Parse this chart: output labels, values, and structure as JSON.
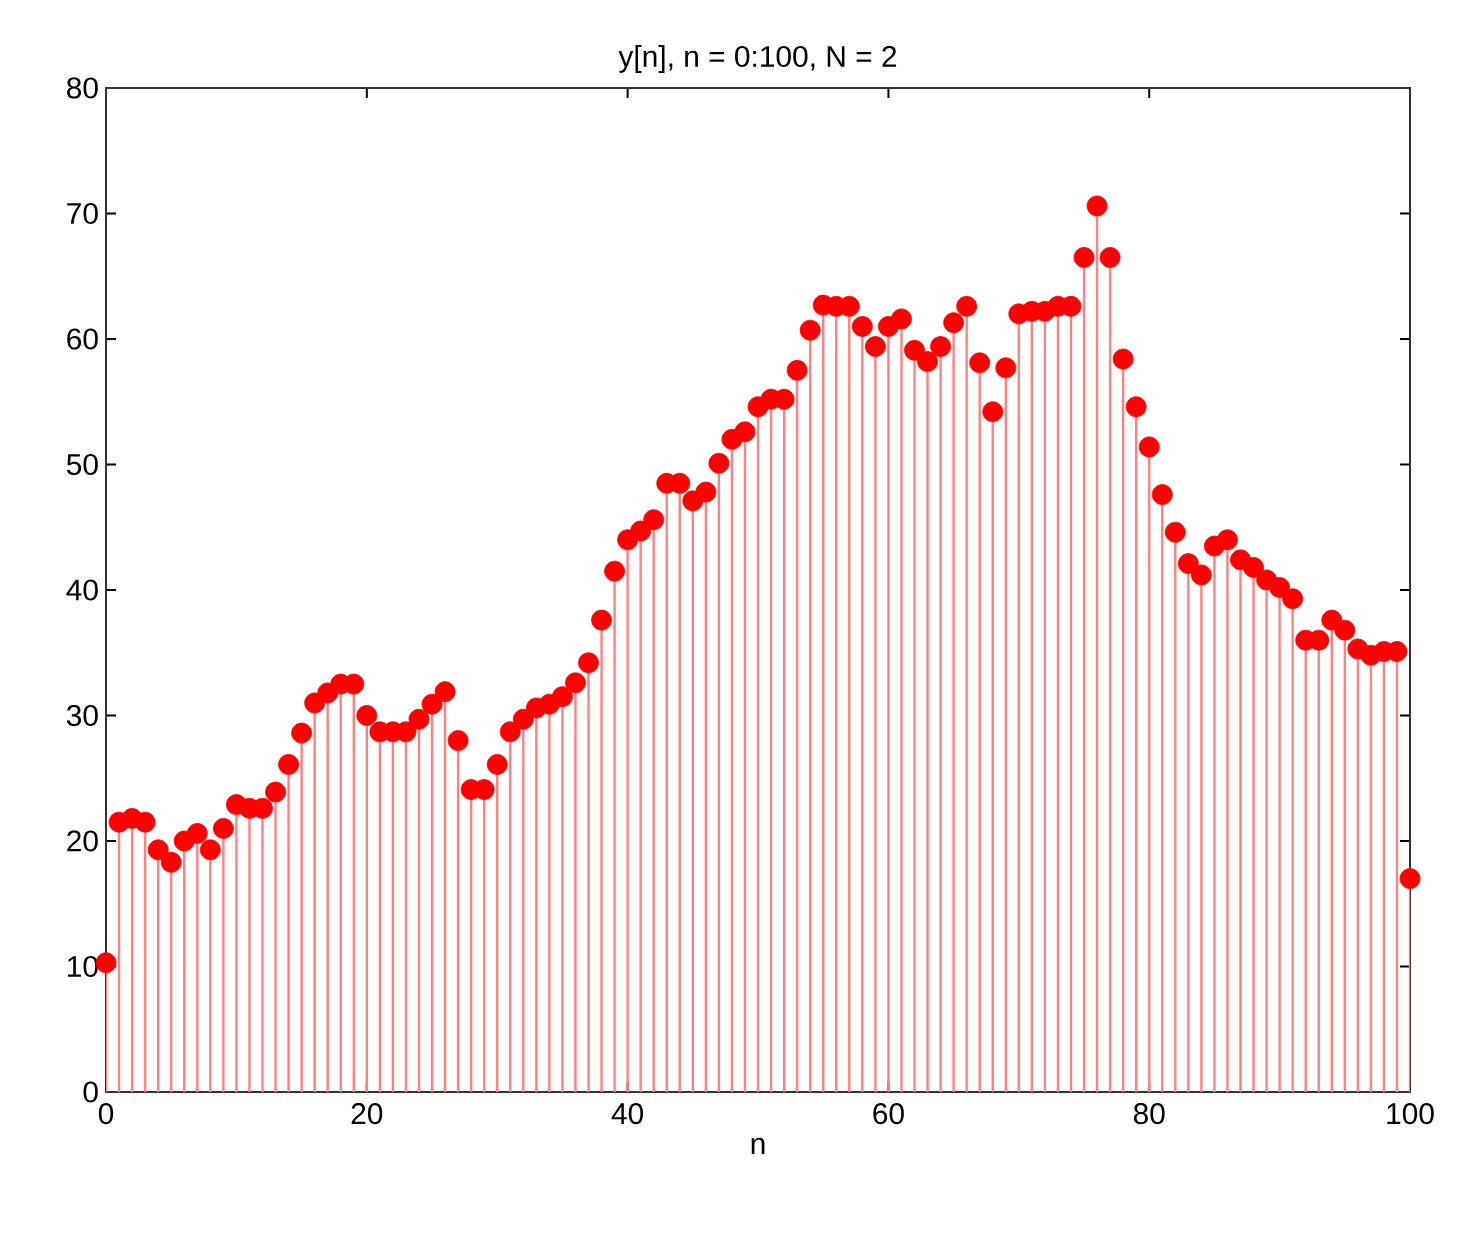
{
  "chart_data": {
    "type": "lollipop",
    "title": "y[n], n = 0:100, N = 2",
    "xlabel": "n",
    "x": [
      0,
      1,
      2,
      3,
      4,
      5,
      6,
      7,
      8,
      9,
      10,
      11,
      12,
      13,
      14,
      15,
      16,
      17,
      18,
      19,
      20,
      21,
      22,
      23,
      24,
      25,
      26,
      27,
      28,
      29,
      30,
      31,
      32,
      33,
      34,
      35,
      36,
      37,
      38,
      39,
      40,
      41,
      42,
      43,
      44,
      45,
      46,
      47,
      48,
      49,
      50,
      51,
      52,
      53,
      54,
      55,
      56,
      57,
      58,
      59,
      60,
      61,
      62,
      63,
      64,
      65,
      66,
      67,
      68,
      69,
      70,
      71,
      72,
      73,
      74,
      75,
      76,
      77,
      78,
      79,
      80,
      81,
      82,
      83,
      84,
      85,
      86,
      87,
      88,
      89,
      90,
      91,
      92,
      93,
      94,
      95,
      96,
      97,
      98,
      99,
      100
    ],
    "series": [
      {
        "color": "#ff0000",
        "values": [
          10.3,
          21.5,
          21.8,
          21.5,
          19.3,
          18.3,
          20.0,
          20.6,
          19.3,
          21.0,
          22.9,
          22.6,
          22.6,
          23.9,
          26.1,
          28.6,
          31.0,
          31.8,
          32.5,
          32.5,
          30.0,
          28.7,
          28.7,
          28.7,
          29.7,
          30.9,
          31.9,
          28.0,
          24.1,
          24.1,
          26.1,
          28.7,
          29.7,
          30.6,
          30.9,
          31.5,
          32.6,
          34.2,
          37.6,
          41.5,
          44.0,
          44.7,
          45.6,
          48.5,
          48.5,
          47.1,
          47.8,
          50.1,
          52.0,
          52.6,
          54.6,
          55.2,
          55.2,
          57.5,
          60.7,
          62.7,
          62.6,
          62.6,
          61.0,
          59.4,
          61.0,
          61.6,
          59.1,
          58.2,
          59.4,
          61.3,
          62.6,
          58.1,
          54.2,
          57.7,
          62.0,
          62.2,
          62.2,
          62.6,
          62.6,
          66.5,
          70.6,
          66.5,
          58.4,
          54.6,
          51.4,
          47.6,
          44.6,
          42.1,
          41.2,
          43.5,
          44.0,
          42.4,
          41.8,
          40.8,
          40.2,
          39.3,
          36.0,
          36.0,
          37.6,
          36.8,
          35.3,
          34.8,
          35.1,
          35.1,
          17.0
        ]
      }
    ],
    "xlim": [
      0,
      100
    ],
    "ylim": [
      0,
      80
    ],
    "xticks": [
      0,
      20,
      40,
      60,
      80,
      100
    ],
    "yticks": [
      0,
      10,
      20,
      30,
      40,
      50,
      60,
      70,
      80
    ],
    "marker": "circle"
  }
}
